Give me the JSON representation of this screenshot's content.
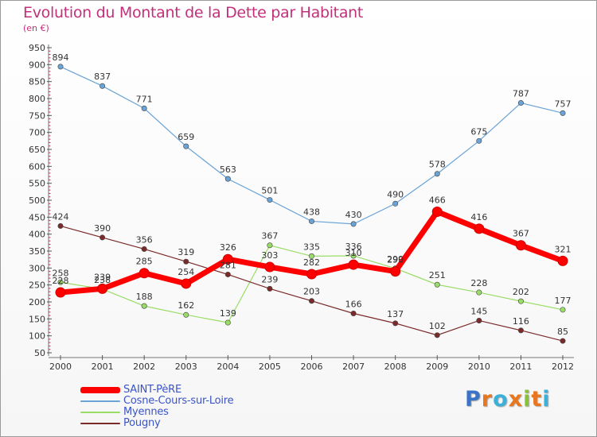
{
  "header": {
    "title": "Evolution du Montant de la Dette par Habitant",
    "unit": "(en €)"
  },
  "brand": {
    "logo_letters": [
      "P",
      "r",
      "o",
      "x",
      "i",
      "t",
      "i"
    ],
    "logo_colors": [
      "#3b73c8",
      "#e8761e",
      "#3bb0d8",
      "#e8761e",
      "#8ac13a",
      "#e8761e",
      "#3bb0d8"
    ]
  },
  "chart_data": {
    "type": "line",
    "title": "Evolution du Montant de la Dette par Habitant",
    "subtitle": "(en €)",
    "xlabel": "",
    "ylabel": "",
    "x": [
      "2000",
      "2001",
      "2002",
      "2003",
      "2004",
      "2005",
      "2006",
      "2007",
      "2008",
      "2009",
      "2010",
      "2011",
      "2012"
    ],
    "ylim": [
      50,
      950
    ],
    "yticks": [
      50,
      100,
      150,
      200,
      250,
      300,
      350,
      400,
      450,
      500,
      550,
      600,
      650,
      700,
      750,
      800,
      850,
      900,
      950
    ],
    "grid": false,
    "legend_position": "bottom-left",
    "series": [
      {
        "name": "SAINT-PèRE",
        "color": "#ff0000",
        "emphasis": true,
        "values": [
          228,
          239,
          285,
          254,
          326,
          303,
          282,
          310,
          290,
          466,
          416,
          367,
          321
        ]
      },
      {
        "name": "Cosne-Cours-sur-Loire",
        "color": "#6aa3d6",
        "values": [
          894,
          837,
          771,
          659,
          563,
          501,
          438,
          430,
          490,
          578,
          675,
          787,
          757
        ]
      },
      {
        "name": "Myennes",
        "color": "#99dd66",
        "values": [
          258,
          238,
          188,
          162,
          139,
          367,
          335,
          336,
          299,
          251,
          228,
          202,
          177
        ]
      },
      {
        "name": "Pougny",
        "color": "#7b2a2a",
        "values": [
          424,
          390,
          356,
          319,
          281,
          239,
          203,
          166,
          137,
          102,
          145,
          116,
          85
        ]
      }
    ]
  }
}
